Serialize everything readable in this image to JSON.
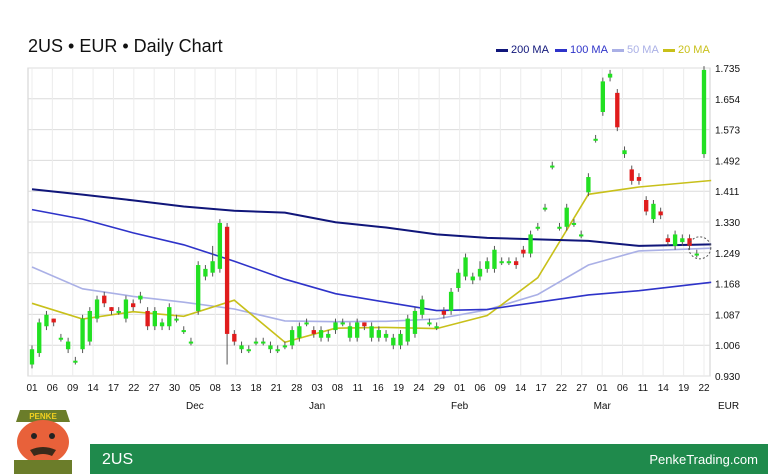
{
  "title": "2US • EUR • Daily Chart",
  "legend": [
    {
      "label": "200 MA",
      "color": "#10167a"
    },
    {
      "label": "100 MA",
      "color": "#2e33c9"
    },
    {
      "label": "50 MA",
      "color": "#aab0e6"
    },
    {
      "label": "20 MA",
      "color": "#c8c01a"
    }
  ],
  "footer": {
    "left": "2US",
    "right": "PenkeTrading.com"
  },
  "mascot": {
    "badge": "PENKE",
    "icon": "penke-mascot-icon"
  },
  "chart_data": {
    "type": "candlestick",
    "currency_label": "EUR",
    "ylim": [
      0.93,
      1.735
    ],
    "y_ticks": [
      "1.735",
      "1.654",
      "1.573",
      "1.492",
      "1.411",
      "1.330",
      "1.249",
      "1.168",
      "1.087",
      "1.006",
      "0.930"
    ],
    "x_tick_labels": [
      "01",
      "06",
      "09",
      "14",
      "17",
      "22",
      "27",
      "30",
      "05",
      "08",
      "13",
      "18",
      "21",
      "28",
      "03",
      "08",
      "11",
      "16",
      "19",
      "24",
      "29",
      "01",
      "06",
      "09",
      "14",
      "17",
      "22",
      "27",
      "01",
      "06",
      "11",
      "14",
      "19",
      "22"
    ],
    "months": [
      {
        "label": "Dec",
        "index": 8
      },
      {
        "label": "Jan",
        "index": 14
      },
      {
        "label": "Feb",
        "index": 21
      },
      {
        "label": "Mar",
        "index": 28
      }
    ],
    "up_color": "#22e022",
    "down_color": "#e01c1c",
    "candles": [
      [
        0.96,
        1.0,
        0.95,
        1.01
      ],
      [
        0.99,
        1.07,
        0.98,
        1.08
      ],
      [
        1.06,
        1.09,
        1.05,
        1.1
      ],
      [
        1.08,
        1.07,
        1.06,
        1.08
      ],
      [
        1.03,
        1.03,
        1.02,
        1.04
      ],
      [
        1.0,
        1.02,
        0.99,
        1.03
      ],
      [
        0.97,
        0.97,
        0.96,
        0.98
      ],
      [
        1.0,
        1.08,
        0.99,
        1.09
      ],
      [
        1.02,
        1.1,
        1.01,
        1.11
      ],
      [
        1.08,
        1.13,
        1.07,
        1.14
      ],
      [
        1.14,
        1.12,
        1.11,
        1.15
      ],
      [
        1.11,
        1.1,
        1.09,
        1.11
      ],
      [
        1.1,
        1.1,
        1.09,
        1.11
      ],
      [
        1.08,
        1.13,
        1.07,
        1.14
      ],
      [
        1.12,
        1.11,
        1.1,
        1.13
      ],
      [
        1.13,
        1.14,
        1.12,
        1.15
      ],
      [
        1.1,
        1.06,
        1.05,
        1.11
      ],
      [
        1.06,
        1.1,
        1.05,
        1.11
      ],
      [
        1.06,
        1.07,
        1.05,
        1.08
      ],
      [
        1.06,
        1.11,
        1.05,
        1.12
      ],
      [
        1.08,
        1.08,
        1.07,
        1.09
      ],
      [
        1.05,
        1.05,
        1.04,
        1.06
      ],
      [
        1.02,
        1.02,
        1.01,
        1.03
      ],
      [
        1.1,
        1.22,
        1.09,
        1.23
      ],
      [
        1.19,
        1.21,
        1.18,
        1.22
      ],
      [
        1.2,
        1.23,
        1.19,
        1.27
      ],
      [
        1.21,
        1.33,
        1.2,
        1.34
      ],
      [
        1.32,
        1.04,
        0.96,
        1.33
      ],
      [
        1.04,
        1.02,
        1.01,
        1.05
      ],
      [
        1.0,
        1.01,
        0.99,
        1.02
      ],
      [
        1.0,
        1.0,
        0.99,
        1.01
      ],
      [
        1.02,
        1.02,
        1.01,
        1.03
      ],
      [
        1.02,
        1.02,
        1.01,
        1.03
      ],
      [
        1.0,
        1.01,
        0.99,
        1.02
      ],
      [
        1.0,
        1.0,
        0.99,
        1.01
      ],
      [
        1.01,
        1.01,
        1.0,
        1.02
      ],
      [
        1.01,
        1.05,
        1.0,
        1.06
      ],
      [
        1.03,
        1.06,
        1.02,
        1.07
      ],
      [
        1.07,
        1.07,
        1.06,
        1.08
      ],
      [
        1.05,
        1.04,
        1.03,
        1.06
      ],
      [
        1.03,
        1.05,
        1.02,
        1.06
      ],
      [
        1.03,
        1.04,
        1.02,
        1.05
      ],
      [
        1.05,
        1.07,
        1.04,
        1.08
      ],
      [
        1.07,
        1.07,
        1.06,
        1.08
      ],
      [
        1.03,
        1.06,
        1.02,
        1.07
      ],
      [
        1.03,
        1.07,
        1.02,
        1.08
      ],
      [
        1.07,
        1.06,
        1.05,
        1.07
      ],
      [
        1.03,
        1.06,
        1.02,
        1.07
      ],
      [
        1.03,
        1.05,
        1.02,
        1.06
      ],
      [
        1.03,
        1.04,
        1.02,
        1.05
      ],
      [
        1.01,
        1.03,
        1.0,
        1.04
      ],
      [
        1.01,
        1.04,
        1.0,
        1.05
      ],
      [
        1.02,
        1.08,
        1.01,
        1.09
      ],
      [
        1.04,
        1.1,
        1.03,
        1.11
      ],
      [
        1.09,
        1.13,
        1.08,
        1.14
      ],
      [
        1.07,
        1.07,
        1.06,
        1.08
      ],
      [
        1.06,
        1.06,
        1.05,
        1.07
      ],
      [
        1.1,
        1.09,
        1.08,
        1.11
      ],
      [
        1.1,
        1.15,
        1.09,
        1.16
      ],
      [
        1.16,
        1.2,
        1.15,
        1.21
      ],
      [
        1.19,
        1.24,
        1.18,
        1.25
      ],
      [
        1.18,
        1.19,
        1.17,
        1.2
      ],
      [
        1.19,
        1.21,
        1.18,
        1.23
      ],
      [
        1.21,
        1.23,
        1.2,
        1.24
      ],
      [
        1.21,
        1.26,
        1.2,
        1.27
      ],
      [
        1.23,
        1.23,
        1.22,
        1.24
      ],
      [
        1.23,
        1.23,
        1.22,
        1.24
      ],
      [
        1.23,
        1.22,
        1.21,
        1.24
      ],
      [
        1.26,
        1.25,
        1.24,
        1.27
      ],
      [
        1.25,
        1.3,
        1.24,
        1.31
      ],
      [
        1.32,
        1.32,
        1.31,
        1.33
      ],
      [
        1.37,
        1.37,
        1.36,
        1.38
      ],
      [
        1.48,
        1.48,
        1.47,
        1.49
      ],
      [
        1.32,
        1.32,
        1.31,
        1.33
      ],
      [
        1.32,
        1.37,
        1.31,
        1.38
      ],
      [
        1.33,
        1.33,
        1.32,
        1.34
      ],
      [
        1.3,
        1.3,
        1.29,
        1.31
      ],
      [
        1.41,
        1.45,
        1.4,
        1.46
      ],
      [
        1.55,
        1.55,
        1.54,
        1.56
      ],
      [
        1.62,
        1.7,
        1.61,
        1.71
      ],
      [
        1.71,
        1.72,
        1.7,
        1.73
      ],
      [
        1.67,
        1.58,
        1.57,
        1.68
      ],
      [
        1.51,
        1.52,
        1.5,
        1.53
      ],
      [
        1.47,
        1.44,
        1.43,
        1.48
      ],
      [
        1.45,
        1.44,
        1.43,
        1.46
      ],
      [
        1.39,
        1.36,
        1.35,
        1.4
      ],
      [
        1.34,
        1.38,
        1.33,
        1.39
      ],
      [
        1.36,
        1.35,
        1.34,
        1.37
      ],
      [
        1.29,
        1.28,
        1.27,
        1.3
      ],
      [
        1.27,
        1.3,
        1.26,
        1.31
      ],
      [
        1.28,
        1.29,
        1.27,
        1.3
      ],
      [
        1.29,
        1.27,
        1.26,
        1.3
      ],
      [
        1.25,
        1.25,
        1.24,
        1.26
      ],
      [
        1.51,
        1.73,
        1.5,
        1.74
      ]
    ],
    "ma200": [
      1.418,
      1.404,
      1.389,
      1.373,
      1.362,
      1.357,
      1.332,
      1.318,
      1.3,
      1.291,
      1.287,
      1.283,
      1.27,
      1.274
    ],
    "ma100": [
      1.365,
      1.34,
      1.304,
      1.273,
      1.23,
      1.183,
      1.145,
      1.123,
      1.101,
      1.104,
      1.123,
      1.142,
      1.153,
      1.175
    ],
    "ma50": [
      1.215,
      1.158,
      1.138,
      1.123,
      1.105,
      1.074,
      1.072,
      1.073,
      1.079,
      1.103,
      1.143,
      1.22,
      1.257,
      1.264
    ],
    "ma20": [
      1.12,
      1.079,
      1.098,
      1.086,
      1.128,
      1.018,
      1.055,
      1.057,
      1.054,
      1.088,
      1.187,
      1.405,
      1.424,
      1.441
    ],
    "ma_x": [
      0,
      7,
      14,
      21,
      28,
      35,
      42,
      49,
      56,
      63,
      70,
      77,
      84,
      94
    ]
  }
}
